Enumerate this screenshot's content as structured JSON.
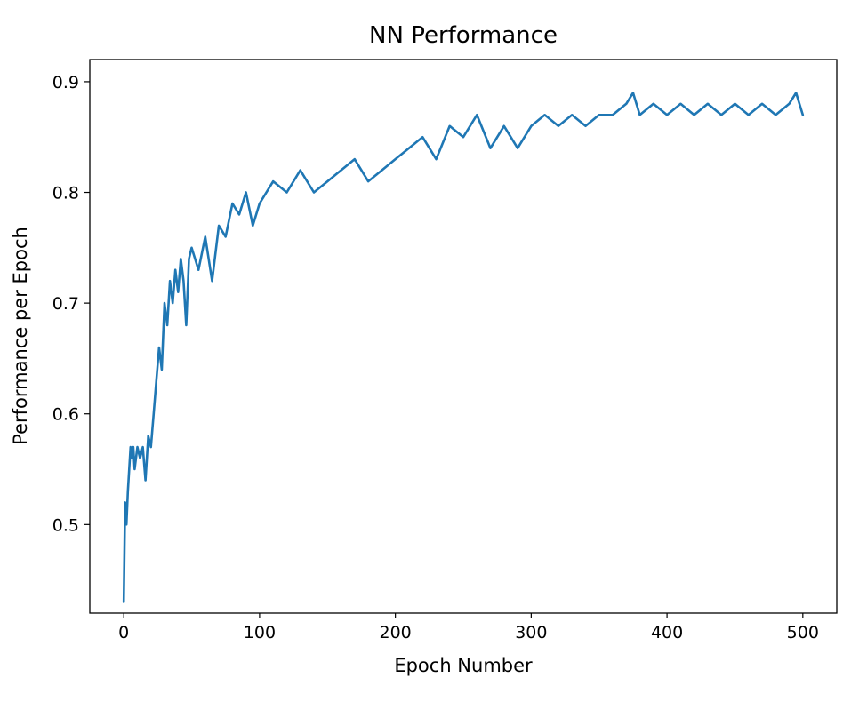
{
  "chart_data": {
    "type": "line",
    "title": "NN Performance",
    "xlabel": "Epoch Number",
    "ylabel": "Performance per Epoch",
    "xlim": [
      -25,
      525
    ],
    "ylim": [
      0.42,
      0.92
    ],
    "x_ticks": [
      0,
      100,
      200,
      300,
      400,
      500
    ],
    "x_tick_labels": [
      "0",
      "100",
      "200",
      "300",
      "400",
      "500"
    ],
    "y_ticks": [
      0.5,
      0.6,
      0.7,
      0.8,
      0.9
    ],
    "y_tick_labels": [
      "0.5",
      "0.6",
      "0.7",
      "0.8",
      "0.9"
    ],
    "grid": false,
    "legend": "none",
    "series_color": "#1f77b4",
    "series": [
      {
        "x": [
          0,
          1,
          2,
          3,
          4,
          5,
          6,
          7,
          8,
          10,
          12,
          14,
          16,
          18,
          20,
          22,
          24,
          26,
          28,
          30,
          32,
          34,
          36,
          38,
          40,
          42,
          44,
          46,
          48,
          50,
          55,
          60,
          65,
          70,
          75,
          80,
          85,
          90,
          95,
          100,
          110,
          120,
          130,
          140,
          150,
          160,
          170,
          180,
          190,
          200,
          210,
          220,
          230,
          240,
          250,
          260,
          270,
          280,
          290,
          300,
          310,
          320,
          330,
          340,
          350,
          360,
          370,
          375,
          380,
          390,
          400,
          410,
          420,
          430,
          440,
          450,
          460,
          470,
          480,
          490,
          495,
          500
        ],
        "y": [
          0.43,
          0.52,
          0.5,
          0.53,
          0.55,
          0.57,
          0.56,
          0.57,
          0.55,
          0.57,
          0.56,
          0.57,
          0.54,
          0.58,
          0.57,
          0.6,
          0.63,
          0.66,
          0.64,
          0.7,
          0.68,
          0.72,
          0.7,
          0.73,
          0.71,
          0.74,
          0.72,
          0.68,
          0.74,
          0.75,
          0.73,
          0.76,
          0.72,
          0.77,
          0.76,
          0.79,
          0.78,
          0.8,
          0.77,
          0.79,
          0.81,
          0.8,
          0.82,
          0.8,
          0.81,
          0.82,
          0.83,
          0.81,
          0.82,
          0.83,
          0.84,
          0.85,
          0.83,
          0.86,
          0.85,
          0.87,
          0.84,
          0.86,
          0.84,
          0.86,
          0.87,
          0.86,
          0.87,
          0.86,
          0.87,
          0.87,
          0.88,
          0.89,
          0.87,
          0.88,
          0.87,
          0.88,
          0.87,
          0.88,
          0.87,
          0.88,
          0.87,
          0.88,
          0.87,
          0.88,
          0.89,
          0.87
        ]
      }
    ]
  }
}
